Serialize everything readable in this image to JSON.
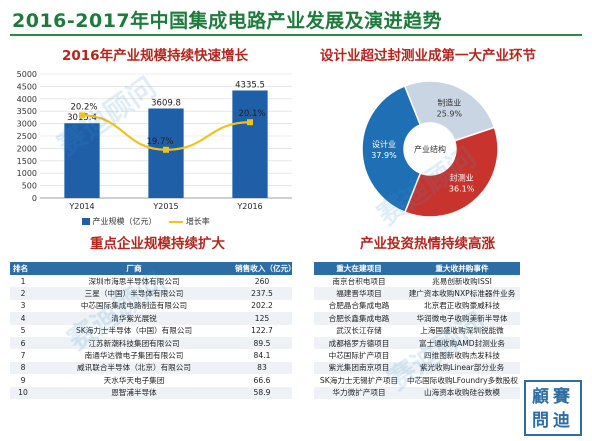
{
  "page_title": "2016-2017年中国集成电路产业发展及演进趋势",
  "watermark_text": "赛迪顾问",
  "stamp": {
    "line1": "顧賽",
    "line2": "問迪"
  },
  "colors": {
    "title": "#1f7a3d",
    "section_title": "#b3261e",
    "bar": "#1f5fa8",
    "line": "#f2c21c",
    "table_header": "#2e6da4"
  },
  "section_titles": {
    "growth": "2016年产业规模持续快速增长",
    "structure": "设计业超过封测业成第一大产业环节",
    "companies": "重点企业规模持续扩大",
    "investment": "产业投资热情持续高涨"
  },
  "chart_data": [
    {
      "type": "bar",
      "title": "2016年产业规模持续快速增长",
      "categories": [
        "Y2014",
        "Y2015",
        "Y2016"
      ],
      "series": [
        {
          "name": "产业规模（亿元）",
          "values": [
            3015.4,
            3609.8,
            4335.5
          ],
          "axis": "left"
        },
        {
          "name": "增长率",
          "type": "line",
          "values": [
            20.2,
            19.7,
            20.1
          ],
          "labels": [
            "20.2%",
            "19.7%",
            "20.1%"
          ],
          "axis": "right"
        }
      ],
      "ylim": [
        0,
        5000
      ],
      "yticks": [
        0,
        500,
        1000,
        1500,
        2000,
        2500,
        3000,
        3500,
        4000,
        4500,
        5000
      ],
      "y2lim": [
        19.0,
        20.8
      ],
      "bar_labels": [
        "3015.4",
        "3609.8",
        "4335.5"
      ],
      "grid": true,
      "legend": "bottom"
    },
    {
      "type": "pie",
      "title": "设计业超过封测业成第一大产业环节",
      "center_label": "产业结构",
      "slices": [
        {
          "label": "设计业",
          "value": 37.9,
          "pct": "37.9%",
          "color": "#1f6fb5"
        },
        {
          "label": "制造业",
          "value": 25.9,
          "pct": "25.9%",
          "color": "#c9d5e3"
        },
        {
          "label": "封测业",
          "value": 36.1,
          "pct": "36.1%",
          "color": "#c8342d"
        }
      ]
    }
  ],
  "companies_table": {
    "headers": [
      "排名",
      "厂商",
      "销售收入（亿元）"
    ],
    "rows": [
      [
        "1",
        "深圳市海思半导体有限公司",
        "260"
      ],
      [
        "2",
        "三星（中国）半导体有限公司",
        "237.5"
      ],
      [
        "3",
        "中芯国际集成电路制造有限公司",
        "202.2"
      ],
      [
        "4",
        "清华紫光展锐",
        "125"
      ],
      [
        "5",
        "SK海力士半导体（中国）有限公司",
        "122.7"
      ],
      [
        "6",
        "江苏新潮科技集团有限公司",
        "89.5"
      ],
      [
        "7",
        "南通华达微电子集团有限公司",
        "84.1"
      ],
      [
        "8",
        "威讯联合半导体（北京）有限公司",
        "83"
      ],
      [
        "9",
        "天水华天电子集团",
        "66.6"
      ],
      [
        "10",
        "恩智浦半导体",
        "58.9"
      ]
    ]
  },
  "investment_table": {
    "headers": [
      "重大在建项目",
      "重大收并购事件"
    ],
    "rows": [
      [
        "南京台积电项目",
        "兆易创新收购ISSI"
      ],
      [
        "福建晋华项目",
        "建广资本收购NXP标准器件业务"
      ],
      [
        "合肥晶合集成电路",
        "北京君正收购豪威科技"
      ],
      [
        "合肥长鑫集成电路",
        "华润微电子收购美新半导体"
      ],
      [
        "武汉长江存储",
        "上海国盛收购深圳锐能微"
      ],
      [
        "成都格罗方德项目",
        "富士通收购AMD封测业务"
      ],
      [
        "中芯国际扩产项目",
        "四维图新收购杰发科技"
      ],
      [
        "紫光集团南京项目",
        "紫光收购Linear部分业务"
      ],
      [
        "SK海力士无锡扩产项目",
        "中芯国际收购LFoundry多数股权"
      ],
      [
        "华力微扩产项目",
        "山海资本收购硅谷数模"
      ]
    ]
  }
}
